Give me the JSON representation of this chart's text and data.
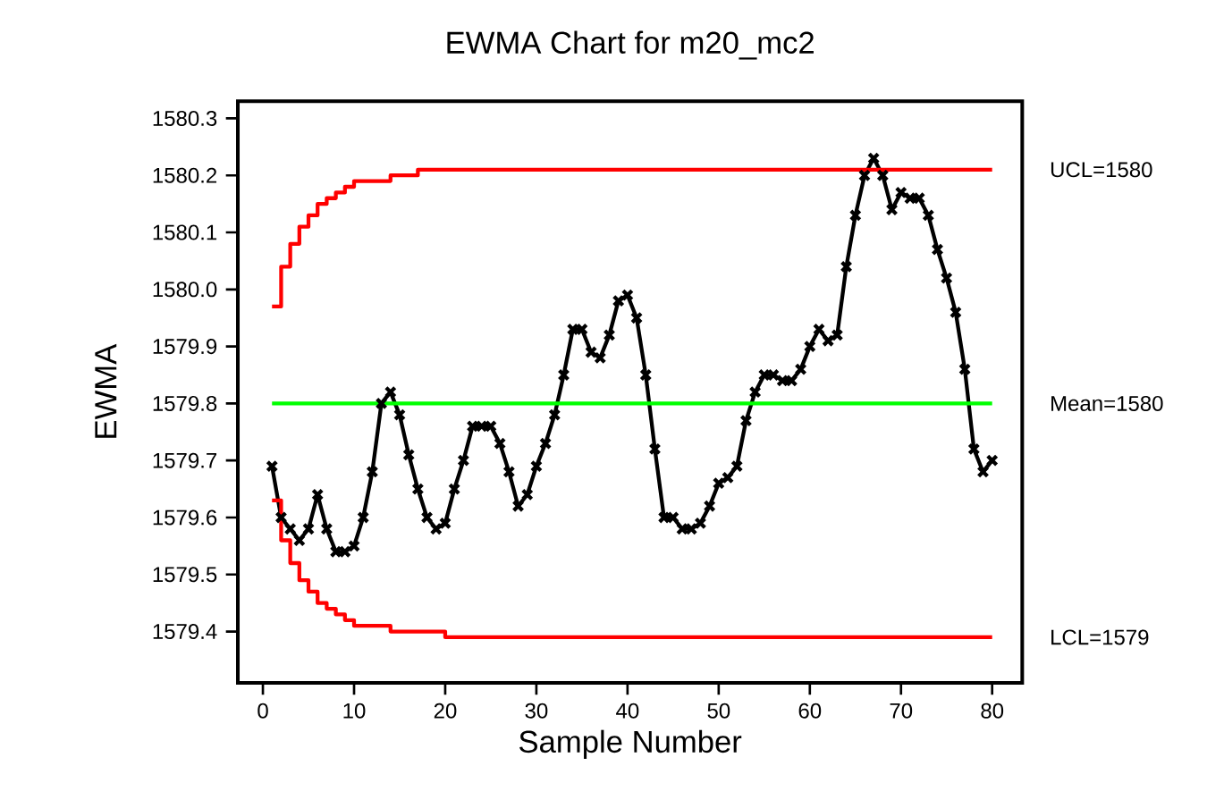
{
  "chart_data": {
    "type": "line",
    "title": "EWMA Chart for m20_mc2",
    "xlabel": "Sample Number",
    "ylabel": "EWMA",
    "x": [
      1,
      2,
      3,
      4,
      5,
      6,
      7,
      8,
      9,
      10,
      11,
      12,
      13,
      14,
      15,
      16,
      17,
      18,
      19,
      20,
      21,
      22,
      23,
      24,
      25,
      26,
      27,
      28,
      29,
      30,
      31,
      32,
      33,
      34,
      35,
      36,
      37,
      38,
      39,
      40,
      41,
      42,
      43,
      44,
      45,
      46,
      47,
      48,
      49,
      50,
      51,
      52,
      53,
      54,
      55,
      56,
      57,
      58,
      59,
      60,
      61,
      62,
      63,
      64,
      65,
      66,
      67,
      68,
      69,
      70,
      71,
      72,
      73,
      74,
      75,
      76,
      77,
      78,
      79,
      80
    ],
    "series": [
      {
        "color": "#000000",
        "marker": "cross",
        "values": [
          1579.69,
          1579.6,
          1579.58,
          1579.56,
          1579.58,
          1579.64,
          1579.58,
          1579.54,
          1579.54,
          1579.55,
          1579.6,
          1579.68,
          1579.8,
          1579.82,
          1579.78,
          1579.71,
          1579.65,
          1579.6,
          1579.58,
          1579.59,
          1579.65,
          1579.7,
          1579.76,
          1579.76,
          1579.76,
          1579.73,
          1579.68,
          1579.62,
          1579.64,
          1579.69,
          1579.73,
          1579.78,
          1579.85,
          1579.93,
          1579.93,
          1579.89,
          1579.88,
          1579.92,
          1579.98,
          1579.99,
          1579.95,
          1579.85,
          1579.72,
          1579.6,
          1579.6,
          1579.58,
          1579.58,
          1579.59,
          1579.62,
          1579.66,
          1579.67,
          1579.69,
          1579.77,
          1579.82,
          1579.85,
          1579.85,
          1579.84,
          1579.84,
          1579.86,
          1579.9,
          1579.93,
          1579.91,
          1579.92,
          1580.04,
          1580.13,
          1580.2,
          1580.23,
          1580.2,
          1580.14,
          1580.17,
          1580.16,
          1580.16,
          1580.13,
          1580.07,
          1580.02,
          1579.96,
          1579.86,
          1579.72,
          1579.68,
          1579.7
        ]
      },
      {
        "name": "UCL=1580",
        "type": "step",
        "color": "#ff0000",
        "marker": "none",
        "values": [
          1579.97,
          1580.04,
          1580.08,
          1580.11,
          1580.13,
          1580.15,
          1580.16,
          1580.17,
          1580.18,
          1580.19,
          1580.19,
          1580.19,
          1580.19,
          1580.2,
          1580.2,
          1580.2,
          1580.21,
          1580.21,
          1580.21,
          1580.21,
          1580.21,
          1580.21,
          1580.21,
          1580.21,
          1580.21,
          1580.21,
          1580.21,
          1580.21,
          1580.21,
          1580.21,
          1580.21,
          1580.21,
          1580.21,
          1580.21,
          1580.21,
          1580.21,
          1580.21,
          1580.21,
          1580.21,
          1580.21,
          1580.21,
          1580.21,
          1580.21,
          1580.21,
          1580.21,
          1580.21,
          1580.21,
          1580.21,
          1580.21,
          1580.21,
          1580.21,
          1580.21,
          1580.21,
          1580.21,
          1580.21,
          1580.21,
          1580.21,
          1580.21,
          1580.21,
          1580.21,
          1580.21,
          1580.21,
          1580.21,
          1580.21,
          1580.21,
          1580.21,
          1580.21,
          1580.21,
          1580.21,
          1580.21,
          1580.21,
          1580.21,
          1580.21,
          1580.21,
          1580.21,
          1580.21,
          1580.21,
          1580.21,
          1580.21,
          1580.21
        ]
      },
      {
        "name": "LCL=1579",
        "type": "step",
        "color": "#ff0000",
        "marker": "none",
        "values": [
          1579.63,
          1579.56,
          1579.52,
          1579.49,
          1579.47,
          1579.45,
          1579.44,
          1579.43,
          1579.42,
          1579.41,
          1579.41,
          1579.41,
          1579.41,
          1579.4,
          1579.4,
          1579.4,
          1579.4,
          1579.4,
          1579.4,
          1579.39,
          1579.39,
          1579.39,
          1579.39,
          1579.39,
          1579.39,
          1579.39,
          1579.39,
          1579.39,
          1579.39,
          1579.39,
          1579.39,
          1579.39,
          1579.39,
          1579.39,
          1579.39,
          1579.39,
          1579.39,
          1579.39,
          1579.39,
          1579.39,
          1579.39,
          1579.39,
          1579.39,
          1579.39,
          1579.39,
          1579.39,
          1579.39,
          1579.39,
          1579.39,
          1579.39,
          1579.39,
          1579.39,
          1579.39,
          1579.39,
          1579.39,
          1579.39,
          1579.39,
          1579.39,
          1579.39,
          1579.39,
          1579.39,
          1579.39,
          1579.39,
          1579.39,
          1579.39,
          1579.39,
          1579.39,
          1579.39,
          1579.39,
          1579.39,
          1579.39,
          1579.39,
          1579.39,
          1579.39,
          1579.39,
          1579.39,
          1579.39,
          1579.39,
          1579.39,
          1579.39
        ]
      }
    ],
    "ref_lines": [
      {
        "axis": "y",
        "value": 1579.8,
        "label": "Mean=1580",
        "color": "#00ff00"
      }
    ],
    "xlim": [
      -2.75,
      83.3
    ],
    "ylim": [
      1579.31,
      1580.33
    ],
    "xticks": [
      0,
      10,
      20,
      30,
      40,
      50,
      60,
      70,
      80
    ],
    "yticks": [
      1579.4,
      1579.5,
      1579.6,
      1579.7,
      1579.8,
      1579.9,
      {
        "value": 1580.0,
        "label": "1580.0"
      },
      1580.1,
      1580.2,
      1580.3
    ],
    "grid": false
  }
}
